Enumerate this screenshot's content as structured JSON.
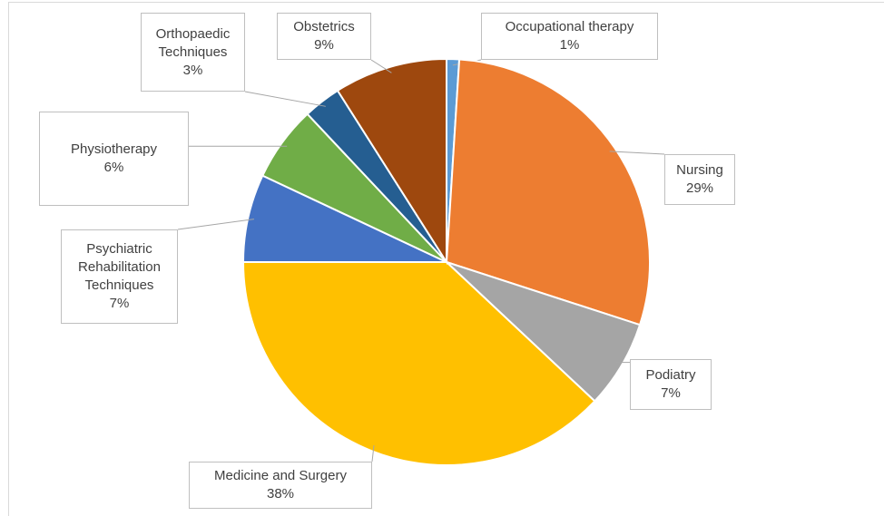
{
  "chart_data": {
    "type": "pie",
    "categories": [
      "Occupational therapy",
      "Nursing",
      "Podiatry",
      "Medicine and Surgery",
      "Psychiatric Rehabilitation Techniques",
      "Physiotherapy",
      "Orthopaedic Techniques",
      "Obstetrics"
    ],
    "values": [
      1,
      29,
      7,
      38,
      7,
      6,
      3,
      9
    ],
    "value_labels": [
      "1%",
      "29%",
      "7%",
      "38%",
      "7%",
      "6%",
      "3%",
      "9%"
    ],
    "colors": [
      "#5b9bd5",
      "#ed7d31",
      "#a5a5a5",
      "#ffc000",
      "#4472c4",
      "#70ad47",
      "#255e91",
      "#9e480e"
    ]
  }
}
